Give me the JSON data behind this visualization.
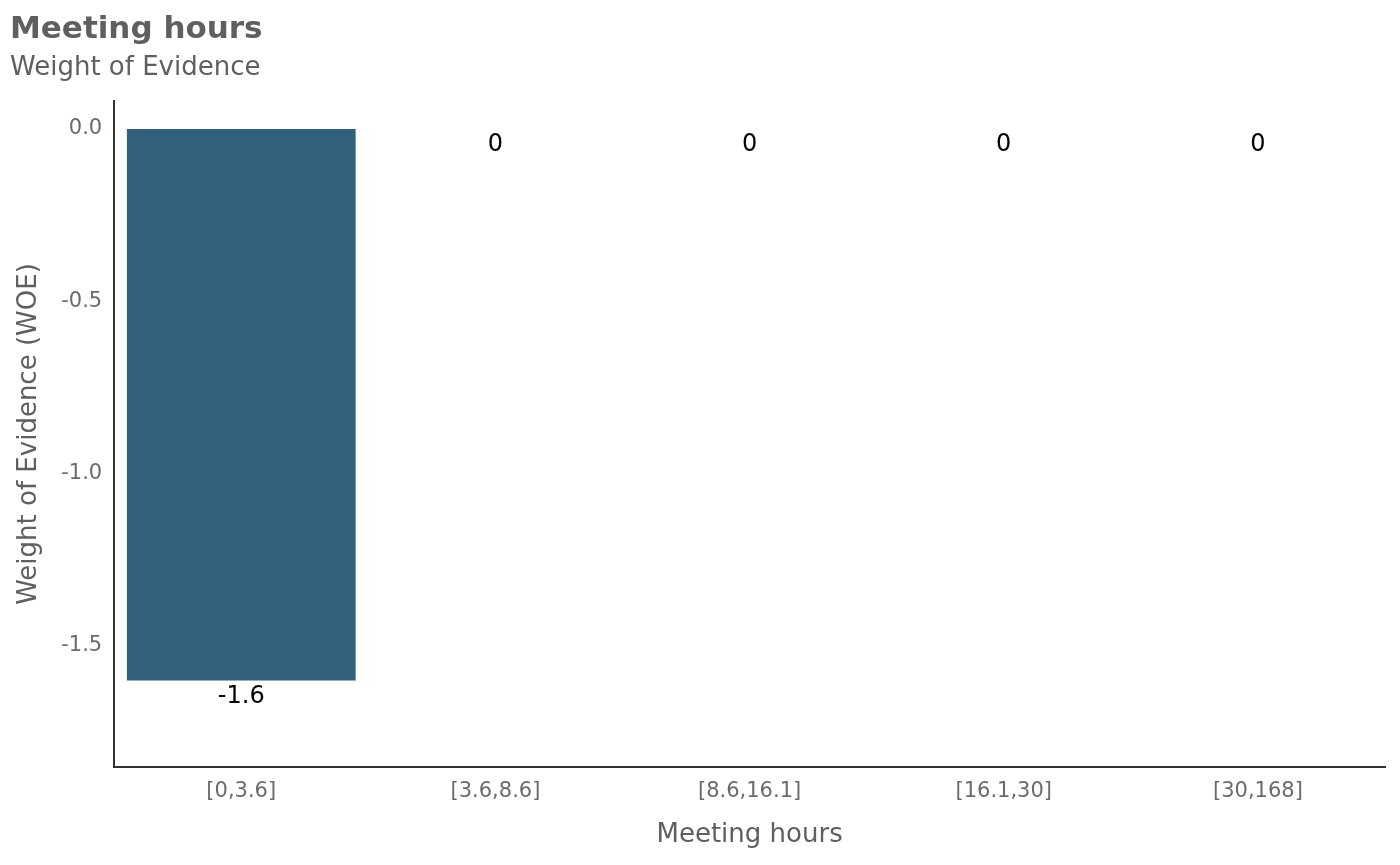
{
  "chart_data": {
    "type": "bar",
    "title": "Meeting hours",
    "subtitle": "Weight of Evidence",
    "xlabel": "Meeting hours",
    "ylabel": "Weight of Evidence (WOE)",
    "categories": [
      "[0,3.6]",
      "[3.6,8.6]",
      "[8.6,16.1]",
      "[16.1,30]",
      "[30,168]"
    ],
    "values": [
      -1.6,
      0,
      0,
      0,
      0
    ],
    "color": "#31617b",
    "data_labels": true,
    "grid": false,
    "legend": false,
    "ylim": [
      -1.85,
      0.08
    ],
    "yticks": [
      {
        "value": 0,
        "label": "0.0"
      },
      -0.5,
      {
        "value": -1,
        "label": "-1.0"
      },
      -1.5
    ]
  }
}
